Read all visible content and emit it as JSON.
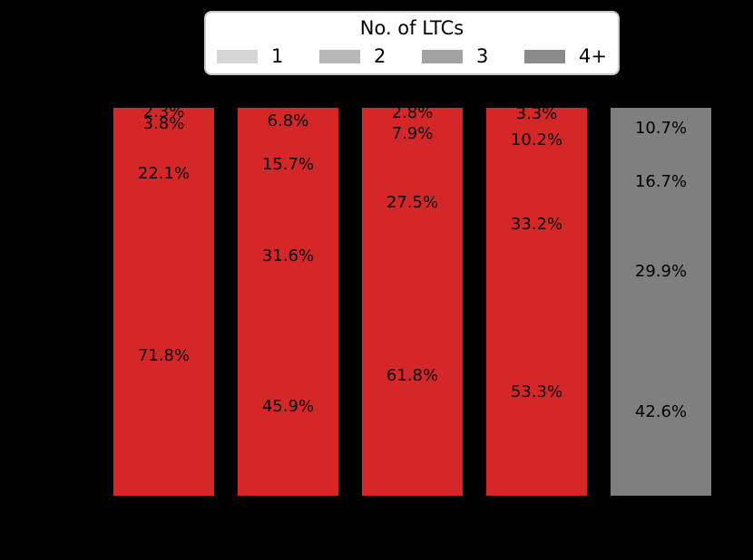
{
  "canvas": {
    "background": "#000000"
  },
  "chart_data": {
    "type": "bar",
    "stacked": true,
    "value_unit": "%",
    "ylim": [
      0,
      100
    ],
    "grid": false,
    "legend_title": "No. of LTCs",
    "legend_position": "top",
    "legend_entries": [
      {
        "label": "1",
        "color": "#d6d6d6"
      },
      {
        "label": "2",
        "color": "#b7b7b7"
      },
      {
        "label": "3",
        "color": "#a2a2a2"
      },
      {
        "label": "4+",
        "color": "#8b8b8b"
      }
    ],
    "bar_colors": [
      "#d62728",
      "#d62728",
      "#d62728",
      "#d62728",
      "#7f7f7f"
    ],
    "accent_red": "#d62728",
    "accent_gray": "#7f7f7f",
    "x_tick_labels_visible": false,
    "stack_order_top_to_bottom": [
      "4+",
      "3",
      "2",
      "1"
    ],
    "series": [
      {
        "name": "1",
        "values": [
          71.8,
          45.9,
          61.8,
          53.3,
          42.6
        ]
      },
      {
        "name": "2",
        "values": [
          22.1,
          31.6,
          27.5,
          33.2,
          29.9
        ]
      },
      {
        "name": "3",
        "values": [
          3.8,
          15.7,
          7.9,
          10.2,
          16.7
        ]
      },
      {
        "name": "4+",
        "values": [
          2.3,
          6.8,
          2.8,
          3.3,
          10.7
        ]
      }
    ],
    "segment_labels": [
      [
        "2.3%",
        "3.8%",
        "22.1%",
        "71.8%"
      ],
      [
        "6.8%",
        "15.7%",
        "31.6%",
        "45.9%"
      ],
      [
        "2.8%",
        "7.9%",
        "27.5%",
        "61.8%"
      ],
      [
        "3.3%",
        "10.2%",
        "33.2%",
        "53.3%"
      ],
      [
        "10.7%",
        "16.7%",
        "29.9%",
        "42.6%"
      ]
    ]
  }
}
